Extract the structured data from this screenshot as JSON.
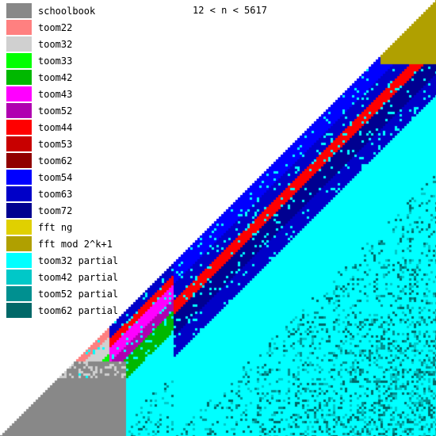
{
  "chart_data": {
    "type": "heatmap",
    "title": "12 < n < 5617",
    "xlabel": "",
    "ylabel": "",
    "legend_position": "top-left",
    "grid": false,
    "categories": [
      {
        "name": "schoolbook",
        "color": "#888888"
      },
      {
        "name": "toom22",
        "color": "#ff8080"
      },
      {
        "name": "toom32",
        "color": "#d0d0d0"
      },
      {
        "name": "toom33",
        "color": "#00ff00"
      },
      {
        "name": "toom42",
        "color": "#00b800"
      },
      {
        "name": "toom43",
        "color": "#ff00ff"
      },
      {
        "name": "toom52",
        "color": "#b000b0"
      },
      {
        "name": "toom44",
        "color": "#ff0000"
      },
      {
        "name": "toom53",
        "color": "#c80000"
      },
      {
        "name": "toom62",
        "color": "#900000"
      },
      {
        "name": "toom54",
        "color": "#0000ff"
      },
      {
        "name": "toom63",
        "color": "#0000c8"
      },
      {
        "name": "toom72",
        "color": "#000090"
      },
      {
        "name": "fft ng",
        "color": "#e0d000"
      },
      {
        "name": "fft mod 2^k+1",
        "color": "#b0a000"
      },
      {
        "name": "toom32 partial",
        "color": "#00ffff"
      },
      {
        "name": "toom42 partial",
        "color": "#00c8c8"
      },
      {
        "name": "toom52 partial",
        "color": "#009090"
      },
      {
        "name": "toom62 partial",
        "color": "#006868"
      }
    ]
  }
}
